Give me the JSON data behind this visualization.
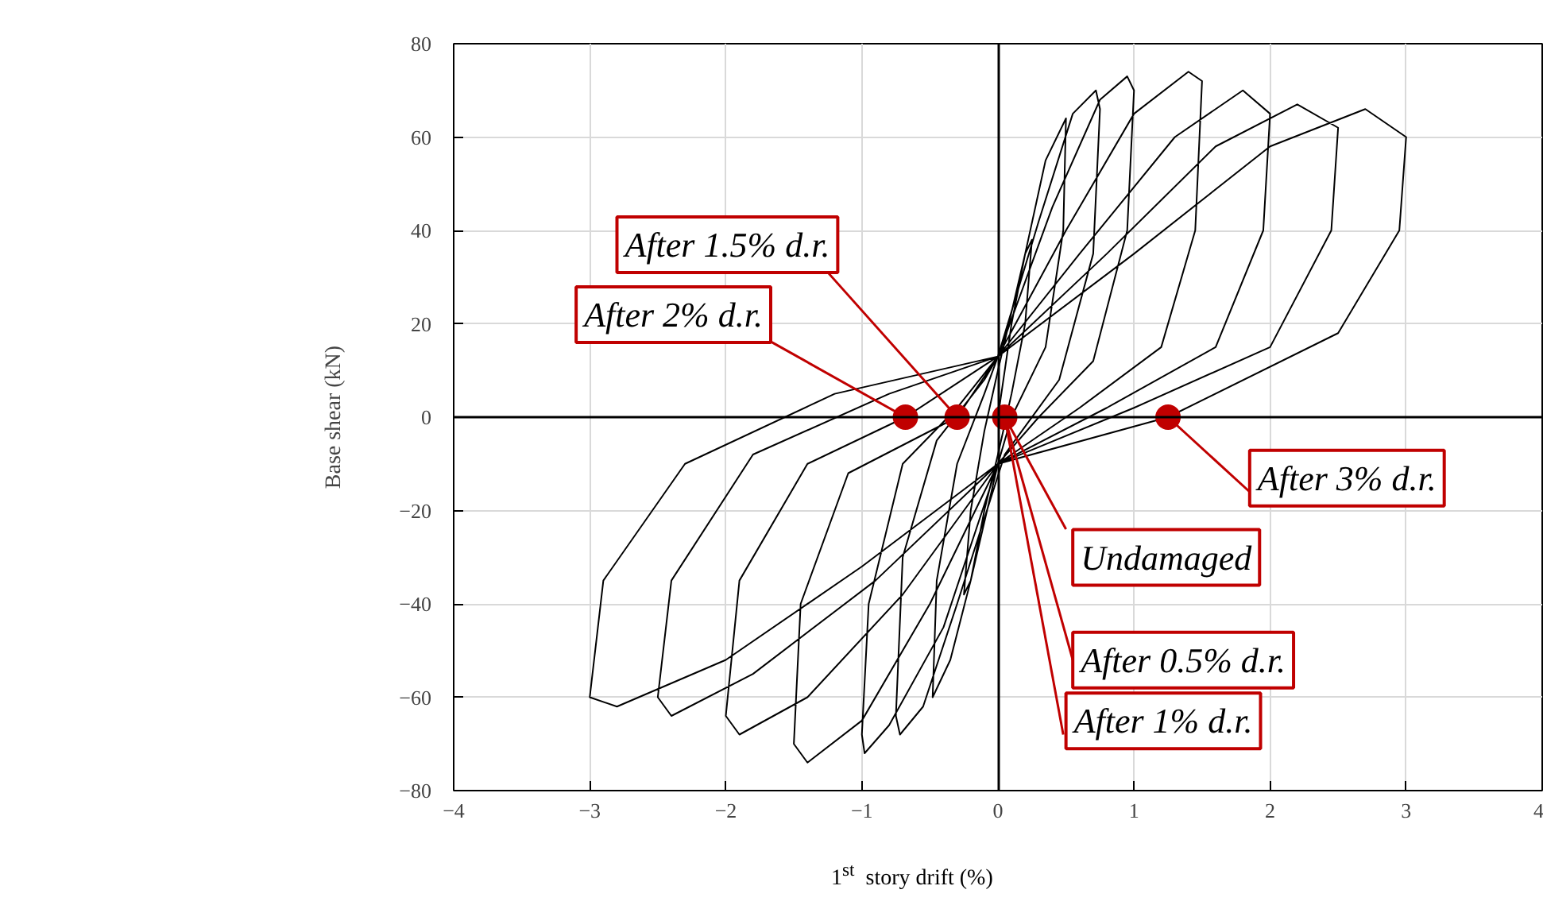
{
  "chart_data": {
    "type": "line",
    "xlabel": "1$^{st}$ story drift (%)",
    "ylabel": "Base shear (kN)",
    "xlim": [
      -4,
      4
    ],
    "ylim": [
      -80,
      80
    ],
    "xticks": [
      -4,
      -3,
      -2,
      -1,
      0,
      1,
      2,
      3,
      4
    ],
    "yticks": [
      -80,
      -60,
      -40,
      -20,
      0,
      20,
      40,
      60,
      80
    ],
    "grid": true,
    "series": [
      {
        "color": "#000000",
        "x": [
          0,
          0.1,
          0.2,
          0.25,
          0.2,
          0.1,
          0,
          -0.1,
          -0.2,
          -0.25,
          -0.2,
          -0.1,
          0,
          0.2,
          0.35,
          0.5,
          0.48,
          0.35,
          0.1,
          0,
          -0.2,
          -0.35,
          -0.48,
          -0.45,
          -0.3,
          -0.1,
          0,
          0.3,
          0.55,
          0.72,
          0.75,
          0.7,
          0.45,
          0.05,
          -0.3,
          -0.55,
          -0.72,
          -0.75,
          -0.7,
          -0.45,
          -0.1,
          0,
          0.4,
          0.75,
          0.95,
          1.0,
          0.95,
          0.7,
          0.3,
          0,
          -0.4,
          -0.8,
          -0.98,
          -1.0,
          -0.95,
          -0.7,
          -0.3,
          0,
          0.5,
          1.0,
          1.4,
          1.5,
          1.45,
          1.2,
          0.6,
          0,
          -0.5,
          -1.0,
          -1.4,
          -1.5,
          -1.45,
          -1.1,
          -0.3,
          0,
          0.6,
          1.3,
          1.8,
          2.0,
          1.95,
          1.6,
          0.8,
          0,
          -0.7,
          -1.4,
          -1.9,
          -2.0,
          -1.9,
          -1.4,
          -0.68,
          0,
          0.8,
          1.6,
          2.2,
          2.5,
          2.45,
          2.0,
          1.0,
          0,
          -0.9,
          -1.8,
          -2.4,
          -2.5,
          -2.4,
          -1.8,
          -0.8,
          0,
          1.0,
          2.0,
          2.7,
          3.0,
          2.95,
          2.5,
          1.25,
          0,
          -1.0,
          -2.0,
          -2.8,
          -3.0,
          -2.9,
          -2.3,
          -1.2,
          0
        ],
        "values": [
          0,
          20,
          35,
          38,
          20,
          5,
          -8,
          -20,
          -35,
          -38,
          -20,
          -3,
          10,
          35,
          55,
          64,
          40,
          15,
          0,
          -10,
          -35,
          -52,
          -60,
          -35,
          -10,
          5,
          13,
          42,
          65,
          70,
          66,
          35,
          8,
          -8,
          -40,
          -62,
          -68,
          -64,
          -30,
          -5,
          8,
          13,
          45,
          68,
          73,
          70,
          40,
          12,
          0,
          -10,
          -45,
          -66,
          -72,
          -68,
          -40,
          -10,
          2,
          13,
          40,
          65,
          74,
          72,
          40,
          15,
          2,
          -10,
          -40,
          -65,
          -74,
          -70,
          -40,
          -12,
          0,
          13,
          35,
          60,
          70,
          65,
          40,
          15,
          2,
          -10,
          -38,
          -60,
          -68,
          -64,
          -35,
          -10,
          0,
          13,
          35,
          58,
          67,
          62,
          40,
          15,
          2,
          -10,
          -35,
          -55,
          -64,
          -60,
          -35,
          -8,
          5,
          13,
          35,
          58,
          66,
          60,
          40,
          18,
          0,
          -10,
          -32,
          -52,
          -62,
          -60,
          -35,
          -10,
          5,
          13
        ]
      },
      {
        "type": "scatter",
        "marker": "circle",
        "color": "#c00000",
        "x": [
          0.05,
          -0.3,
          -0.68,
          1.25
        ],
        "values": [
          0,
          0,
          0,
          0
        ]
      }
    ],
    "annotations": [
      {
        "text": "Undamaged",
        "x": 0.05,
        "y": 0
      },
      {
        "text": "After 0.5% d.r.",
        "x": 0.05,
        "y": 0
      },
      {
        "text": "After 1% d.r.",
        "x": 0.05,
        "y": 0
      },
      {
        "text": "After 1.5% d.r.",
        "x": -0.3,
        "y": 0
      },
      {
        "text": "After 2% d.r.",
        "x": -0.68,
        "y": 0
      },
      {
        "text": "After 3% d.r.",
        "x": 1.25,
        "y": 0
      }
    ]
  }
}
